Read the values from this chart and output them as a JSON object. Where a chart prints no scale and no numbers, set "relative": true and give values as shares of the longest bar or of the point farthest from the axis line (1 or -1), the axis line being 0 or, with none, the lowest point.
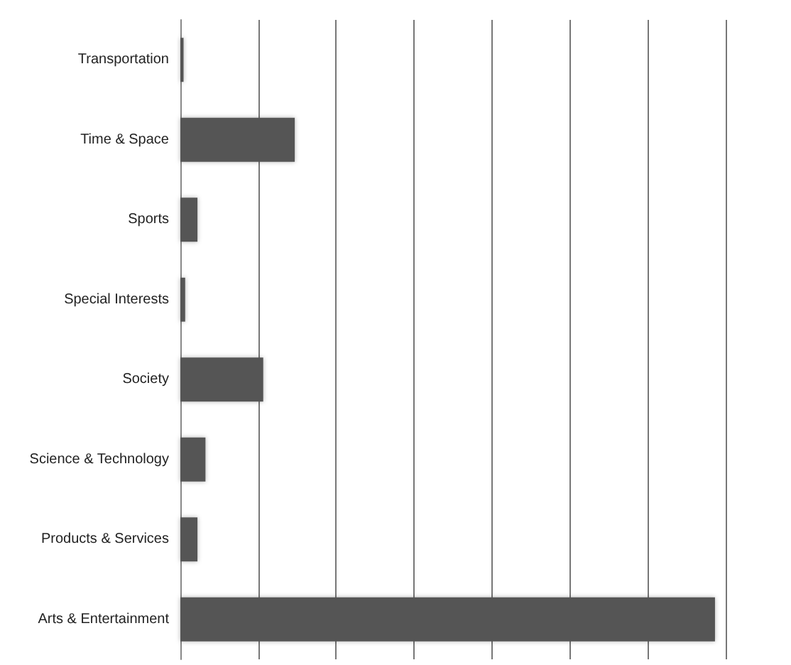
{
  "chart_data": {
    "type": "bar",
    "orientation": "horizontal",
    "relative": true,
    "categories": [
      "Transportation",
      "Time & Space",
      "Sports",
      "Special Interests",
      "Society",
      "Science & Technology",
      "Products & Services",
      "Arts & Entertainment"
    ],
    "values": [
      0.006,
      0.214,
      0.032,
      0.009,
      0.155,
      0.047,
      0.032,
      1
    ],
    "color": "#555555",
    "grid": "x",
    "tick_labels": "y"
  }
}
